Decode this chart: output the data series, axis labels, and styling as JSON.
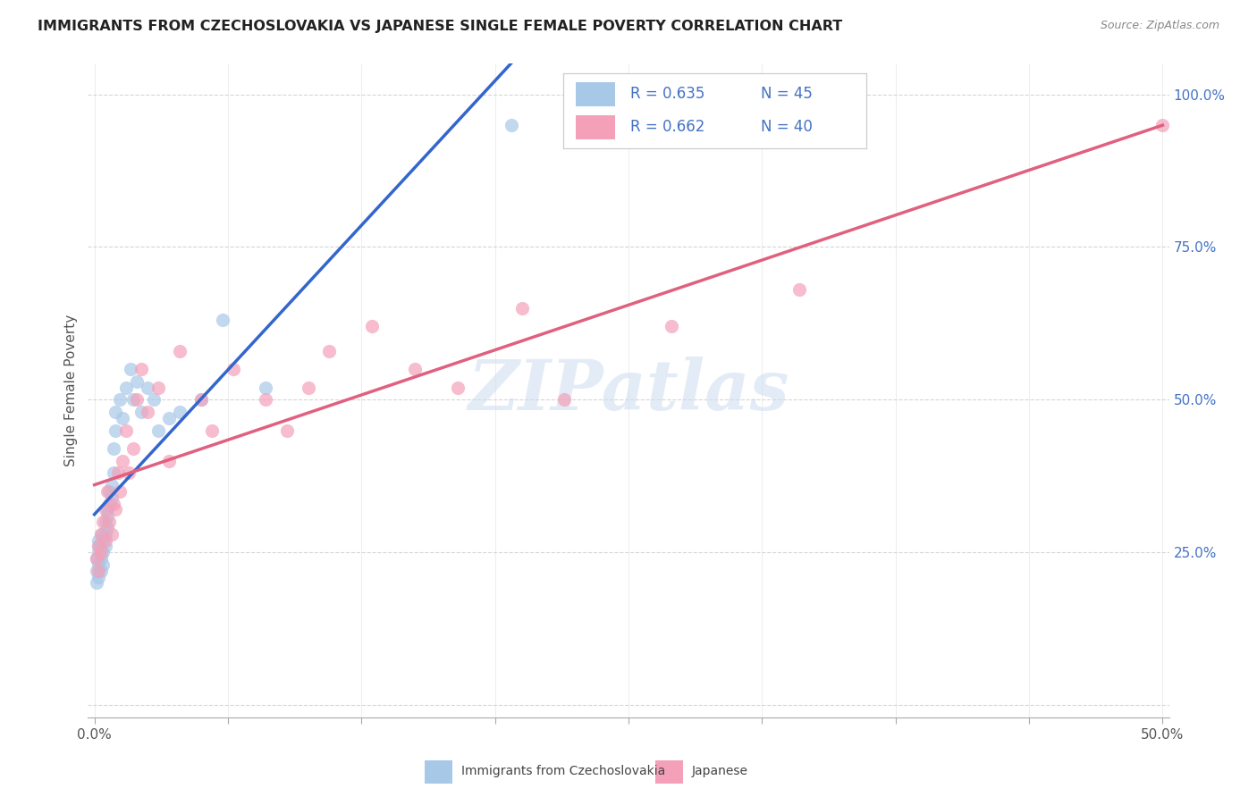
{
  "title": "IMMIGRANTS FROM CZECHOSLOVAKIA VS JAPANESE SINGLE FEMALE POVERTY CORRELATION CHART",
  "source": "Source: ZipAtlas.com",
  "ylabel": "Single Female Poverty",
  "legend_r1": "R = 0.635",
  "legend_n1": "N = 45",
  "legend_r2": "R = 0.662",
  "legend_n2": "N = 40",
  "watermark": "ZIPatlas",
  "color_blue": "#a8c8e8",
  "color_blue_line": "#3366cc",
  "color_pink": "#f4a0b8",
  "color_pink_line": "#e06080",
  "background_color": "#ffffff",
  "grid_color": "#cccccc",
  "title_color": "#222222",
  "ytick_color": "#4472c4",
  "xtick_color": "#555555",
  "blue_x": [
    0.001,
    0.001,
    0.001,
    0.002,
    0.002,
    0.002,
    0.002,
    0.002,
    0.003,
    0.003,
    0.003,
    0.003,
    0.004,
    0.004,
    0.004,
    0.005,
    0.005,
    0.005,
    0.006,
    0.006,
    0.006,
    0.007,
    0.007,
    0.008,
    0.008,
    0.009,
    0.009,
    0.01,
    0.01,
    0.012,
    0.013,
    0.015,
    0.017,
    0.018,
    0.02,
    0.022,
    0.025,
    0.028,
    0.03,
    0.035,
    0.04,
    0.05,
    0.06,
    0.08,
    0.195
  ],
  "blue_y": [
    0.22,
    0.24,
    0.2,
    0.25,
    0.23,
    0.26,
    0.21,
    0.27,
    0.24,
    0.22,
    0.26,
    0.28,
    0.25,
    0.27,
    0.23,
    0.3,
    0.28,
    0.26,
    0.32,
    0.29,
    0.31,
    0.35,
    0.33,
    0.36,
    0.34,
    0.38,
    0.42,
    0.45,
    0.48,
    0.5,
    0.47,
    0.52,
    0.55,
    0.5,
    0.53,
    0.48,
    0.52,
    0.5,
    0.45,
    0.47,
    0.48,
    0.5,
    0.63,
    0.52,
    0.95
  ],
  "pink_x": [
    0.001,
    0.002,
    0.002,
    0.003,
    0.003,
    0.004,
    0.005,
    0.005,
    0.006,
    0.007,
    0.008,
    0.009,
    0.01,
    0.011,
    0.012,
    0.013,
    0.015,
    0.016,
    0.018,
    0.02,
    0.022,
    0.025,
    0.03,
    0.035,
    0.04,
    0.05,
    0.055,
    0.065,
    0.08,
    0.09,
    0.1,
    0.11,
    0.13,
    0.15,
    0.17,
    0.2,
    0.22,
    0.27,
    0.33,
    0.5
  ],
  "pink_y": [
    0.24,
    0.26,
    0.22,
    0.28,
    0.25,
    0.3,
    0.27,
    0.32,
    0.35,
    0.3,
    0.28,
    0.33,
    0.32,
    0.38,
    0.35,
    0.4,
    0.45,
    0.38,
    0.42,
    0.5,
    0.55,
    0.48,
    0.52,
    0.4,
    0.58,
    0.5,
    0.45,
    0.55,
    0.5,
    0.45,
    0.52,
    0.58,
    0.62,
    0.55,
    0.52,
    0.65,
    0.5,
    0.62,
    0.68,
    0.95
  ]
}
